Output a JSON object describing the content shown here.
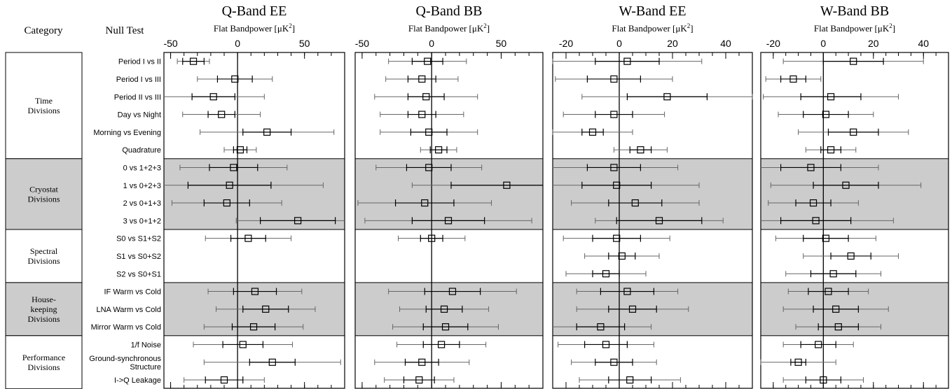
{
  "headers": {
    "category": "Category",
    "null_test": "Null Test",
    "axis_label_prefix": "Flat Bandpower [",
    "axis_label_unit": "μK",
    "axis_label_exp": "2",
    "axis_label_suffix": "]"
  },
  "categories": [
    {
      "lines": [
        "Time",
        "Divisions"
      ],
      "rows": [
        0,
        5
      ],
      "shaded": false
    },
    {
      "lines": [
        "Cryostat",
        "Divisions"
      ],
      "rows": [
        6,
        9
      ],
      "shaded": true
    },
    {
      "lines": [
        "Spectral",
        "Divisions"
      ],
      "rows": [
        10,
        12
      ],
      "shaded": false
    },
    {
      "lines": [
        "House-",
        "keeping",
        "Divisions"
      ],
      "rows": [
        13,
        15
      ],
      "shaded": true
    },
    {
      "lines": [
        "Performance",
        "Divisions"
      ],
      "rows": [
        16,
        18
      ],
      "shaded": false
    }
  ],
  "tests": [
    [
      "Period I vs II"
    ],
    [
      "Period I vs III"
    ],
    [
      "Period II vs III"
    ],
    [
      "Day vs Night"
    ],
    [
      "Morning vs Evening"
    ],
    [
      "Quadrature"
    ],
    [
      "0 vs 1+2+3"
    ],
    [
      "1 vs 0+2+3"
    ],
    [
      "2 vs 0+1+3"
    ],
    [
      "3 vs 0+1+2"
    ],
    [
      "S0 vs S1+S2"
    ],
    [
      "S1 vs S0+S2"
    ],
    [
      "S2 vs S0+S1"
    ],
    [
      "IF Warm vs Cold"
    ],
    [
      "LNA Warm vs Cold"
    ],
    [
      "Mirror Warm vs Cold"
    ],
    [
      "1/f Noise"
    ],
    [
      "Ground-synchronous",
      "Structure"
    ],
    [
      "I->Q Leakage"
    ]
  ],
  "chart_data": [
    {
      "type": "scatter",
      "title": "Q-Band EE",
      "xlim": [
        -55,
        80
      ],
      "xticks": [
        -50,
        0,
        50
      ],
      "rows": [
        {
          "v": -33,
          "e1": 8,
          "e2": 12
        },
        {
          "v": -2,
          "e1": 13,
          "e2": 28
        },
        {
          "v": -18,
          "e1": 16,
          "e2": 38
        },
        {
          "v": -12,
          "e1": 10,
          "e2": 29
        },
        {
          "v": 22,
          "e1": 18,
          "e2": 50
        },
        {
          "v": 2,
          "e1": 5,
          "e2": 12
        },
        {
          "v": -3,
          "e1": 18,
          "e2": 40
        },
        {
          "v": -6,
          "e1": 31,
          "e2": 70
        },
        {
          "v": -8,
          "e1": 17,
          "e2": 41
        },
        {
          "v": 45,
          "e1": 28,
          "e2": 46
        },
        {
          "v": 8,
          "e1": 13,
          "e2": 32
        },
        {
          "v": null,
          "e1": 0,
          "e2": 0
        },
        {
          "v": null,
          "e1": 0,
          "e2": 0
        },
        {
          "v": 13,
          "e1": 16,
          "e2": 35
        },
        {
          "v": 21,
          "e1": 17,
          "e2": 37
        },
        {
          "v": 12,
          "e1": 16,
          "e2": 37
        },
        {
          "v": 4,
          "e1": 15,
          "e2": 37
        },
        {
          "v": 26,
          "e1": 17,
          "e2": 51
        },
        {
          "v": -10,
          "e1": 14,
          "e2": 30
        }
      ]
    },
    {
      "type": "scatter",
      "title": "Q-Band BB",
      "xlim": [
        -55,
        80
      ],
      "xticks": [
        -50,
        0,
        50
      ],
      "rows": [
        {
          "v": -3,
          "e1": 11,
          "e2": 28
        },
        {
          "v": -7,
          "e1": 10,
          "e2": 26
        },
        {
          "v": -4,
          "e1": 13,
          "e2": 37
        },
        {
          "v": -7,
          "e1": 10,
          "e2": 30
        },
        {
          "v": -2,
          "e1": 13,
          "e2": 35
        },
        {
          "v": 5,
          "e1": 6,
          "e2": 13
        },
        {
          "v": -2,
          "e1": 16,
          "e2": 38
        },
        {
          "v": 54,
          "e1": 40,
          "e2": 68
        },
        {
          "v": -5,
          "e1": 21,
          "e2": 48
        },
        {
          "v": 12,
          "e1": 26,
          "e2": 60
        },
        {
          "v": 0,
          "e1": 8,
          "e2": 24
        },
        {
          "v": null,
          "e1": 0,
          "e2": 0
        },
        {
          "v": null,
          "e1": 0,
          "e2": 0
        },
        {
          "v": 15,
          "e1": 20,
          "e2": 46
        },
        {
          "v": 9,
          "e1": 13,
          "e2": 32
        },
        {
          "v": 10,
          "e1": 16,
          "e2": 38
        },
        {
          "v": 7,
          "e1": 13,
          "e2": 32
        },
        {
          "v": -7,
          "e1": 12,
          "e2": 34
        },
        {
          "v": -9,
          "e1": 11,
          "e2": 25
        }
      ]
    },
    {
      "type": "scatter",
      "title": "W-Band EE",
      "xlim": [
        -25,
        50
      ],
      "xticks": [
        -20,
        0,
        20,
        40
      ],
      "rows": [
        {
          "v": 3,
          "e1": 12,
          "e2": 28
        },
        {
          "v": -2,
          "e1": 10,
          "e2": 22
        },
        {
          "v": 18,
          "e1": 15,
          "e2": 32
        },
        {
          "v": -2,
          "e1": 7,
          "e2": 19
        },
        {
          "v": -10,
          "e1": 4,
          "e2": 15
        },
        {
          "v": 8,
          "e1": 4,
          "e2": 10
        },
        {
          "v": -2,
          "e1": 10,
          "e2": 24
        },
        {
          "v": -1,
          "e1": 13,
          "e2": 31
        },
        {
          "v": 6,
          "e1": 10,
          "e2": 24
        },
        {
          "v": 15,
          "e1": 16,
          "e2": 24
        },
        {
          "v": -1,
          "e1": 9,
          "e2": 20
        },
        {
          "v": 1,
          "e1": 5,
          "e2": 14
        },
        {
          "v": -5,
          "e1": 5,
          "e2": 15
        },
        {
          "v": 3,
          "e1": 10,
          "e2": 19
        },
        {
          "v": 5,
          "e1": 9,
          "e2": 21
        },
        {
          "v": -7,
          "e1": 9,
          "e2": 19
        },
        {
          "v": -5,
          "e1": 8,
          "e2": 18
        },
        {
          "v": -2,
          "e1": 7,
          "e2": 16
        },
        {
          "v": 4,
          "e1": 8,
          "e2": 19
        }
      ]
    },
    {
      "type": "scatter",
      "title": "W-Band BB",
      "xlim": [
        -25,
        50
      ],
      "xticks": [
        -20,
        0,
        20,
        40
      ],
      "rows": [
        {
          "v": 12,
          "e1": 12,
          "e2": 28
        },
        {
          "v": -12,
          "e1": 5,
          "e2": 11
        },
        {
          "v": 3,
          "e1": 12,
          "e2": 27
        },
        {
          "v": 1,
          "e1": 9,
          "e2": 19
        },
        {
          "v": 12,
          "e1": 10,
          "e2": 22
        },
        {
          "v": 3,
          "e1": 4,
          "e2": 10
        },
        {
          "v": -5,
          "e1": 12,
          "e2": 27
        },
        {
          "v": 9,
          "e1": 13,
          "e2": 30
        },
        {
          "v": -4,
          "e1": 7,
          "e2": 18
        },
        {
          "v": -3,
          "e1": 14,
          "e2": 31
        },
        {
          "v": 1,
          "e1": 9,
          "e2": 20
        },
        {
          "v": 11,
          "e1": 8,
          "e2": 19
        },
        {
          "v": 4,
          "e1": 9,
          "e2": 19
        },
        {
          "v": 2,
          "e1": 8,
          "e2": 16
        },
        {
          "v": 5,
          "e1": 9,
          "e2": 21
        },
        {
          "v": 6,
          "e1": 8,
          "e2": 17
        },
        {
          "v": -2,
          "e1": 7,
          "e2": 14
        },
        {
          "v": -10,
          "e1": 3,
          "e2": 15
        },
        {
          "v": 0,
          "e1": 7,
          "e2": 16
        }
      ]
    }
  ]
}
